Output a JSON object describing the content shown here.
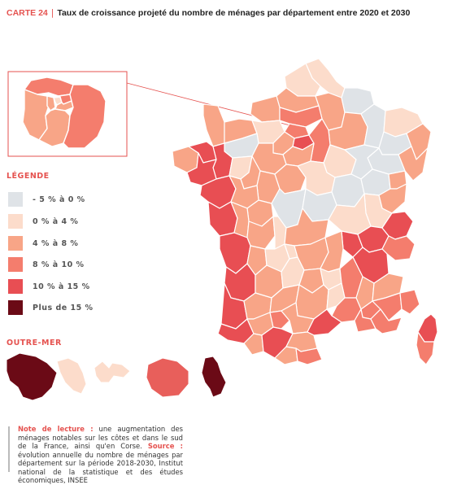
{
  "header": {
    "carte_label": "CARTE 24",
    "title": "Taux de croissance projeté du nombre de ménages par département entre 2020 et 2030"
  },
  "legend": {
    "title": "LÉGENDE",
    "items": [
      {
        "label": "- 5 % à 0 %",
        "color": "#dfe3e7"
      },
      {
        "label": "0 % à 4 %",
        "color": "#fcdccb"
      },
      {
        "label": "4 % à 8 %",
        "color": "#f8a587"
      },
      {
        "label": "8 % à 10 %",
        "color": "#f47d6d"
      },
      {
        "label": "10 % à 15 %",
        "color": "#e84e53"
      },
      {
        "label": "Plus de 15 %",
        "color": "#6b0a16"
      }
    ]
  },
  "outremer": {
    "title": "OUTRE-MER",
    "territories": [
      {
        "name": "guyane",
        "color": "#6b0a16"
      },
      {
        "name": "martinique",
        "color": "#fcdccb"
      },
      {
        "name": "guadeloupe",
        "color": "#fcdccb"
      },
      {
        "name": "reunion",
        "color": "#e85f5b"
      },
      {
        "name": "mayotte",
        "color": "#6b0a16"
      }
    ]
  },
  "note": {
    "reading_label": "Note de lecture :",
    "reading_text": " une augmentation des ménages notables sur les côtes et dans le sud de la France, ainsi qu'en Corse.",
    "source_label": "Source :",
    "source_text": " évolution annuelle du nombre de ménages par département sur la période 2018-2030, Institut national de la statistique et des études économiques, INSEE"
  },
  "colors": {
    "accent": "#e5524f",
    "border": "#ffffff"
  }
}
